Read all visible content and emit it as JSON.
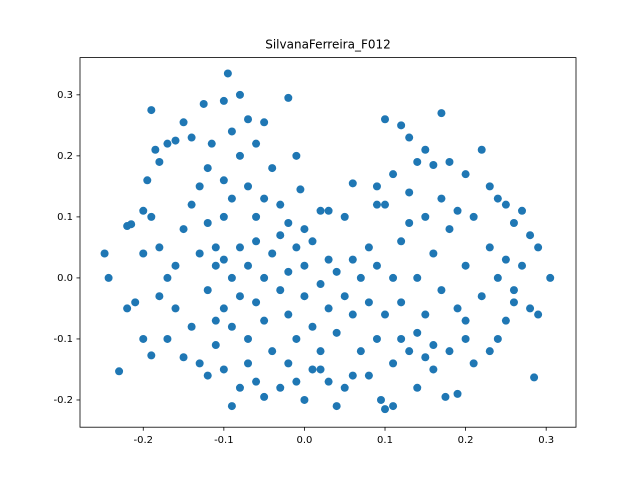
{
  "chart_data": {
    "type": "scatter",
    "title": "SilvanaFerreira_F012",
    "color": "#1f77b4",
    "xlim": [
      -0.2785,
      0.337
    ],
    "ylim": [
      -0.2446,
      0.361
    ],
    "xticks": [
      -0.2,
      -0.1,
      {
        "value": 0,
        "label": "0.0"
      },
      0.1,
      0.2,
      0.3
    ],
    "yticks": [
      -0.2,
      -0.1,
      {
        "value": 0,
        "label": "0.0"
      },
      0.1,
      0.2,
      0.3
    ],
    "x": [
      -0.248,
      -0.243,
      -0.23,
      -0.22,
      -0.215,
      -0.2,
      -0.195,
      -0.19,
      -0.185,
      -0.18,
      -0.17,
      -0.16,
      -0.15,
      -0.14,
      -0.125,
      -0.115,
      -0.1,
      -0.095,
      -0.09,
      -0.08,
      -0.07,
      -0.06,
      -0.05,
      -0.02,
      -0.01,
      -0.005,
      0.02,
      0.03,
      0.05,
      0.06,
      0.09,
      0.1,
      0.1,
      0.12,
      0.13,
      0.14,
      0.15,
      0.16,
      0.17,
      0.18,
      0.2,
      0.22,
      0.23,
      0.24,
      0.25,
      0.26,
      0.27,
      0.28,
      0.29,
      0.305,
      0.28,
      0.29,
      0.285,
      0.26,
      0.25,
      0.24,
      0.23,
      0.21,
      0.2,
      0.19,
      0.175,
      0.16,
      0.15,
      0.14,
      0.13,
      0.12,
      0.11,
      0.1,
      0.095,
      0.08,
      0.07,
      0.06,
      0.05,
      0.04,
      0.03,
      0.02,
      0.0,
      -0.01,
      -0.03,
      -0.05,
      -0.06,
      -0.08,
      -0.09,
      -0.1,
      -0.12,
      -0.13,
      -0.15,
      -0.17,
      -0.19,
      -0.2,
      -0.21,
      -0.22,
      -0.2,
      -0.18,
      -0.17,
      -0.16,
      -0.15,
      -0.14,
      -0.13,
      -0.12,
      -0.11,
      -0.1,
      -0.12,
      -0.11,
      -0.1,
      -0.1,
      -0.09,
      -0.09,
      -0.08,
      -0.08,
      -0.07,
      -0.07,
      -0.06,
      -0.06,
      -0.05,
      -0.05,
      -0.04,
      -0.04,
      -0.03,
      -0.03,
      -0.02,
      -0.02,
      -0.01,
      -0.01,
      0.0,
      0.0,
      0.01,
      0.01,
      0.02,
      0.02,
      0.03,
      0.03,
      0.04,
      0.04,
      0.05,
      0.06,
      0.06,
      0.07,
      0.08,
      0.08,
      0.09,
      0.1,
      0.11,
      0.12,
      0.12,
      0.13,
      0.14,
      0.15,
      0.15,
      0.16,
      0.17,
      0.18,
      0.19,
      0.2,
      0.21,
      0.22,
      0.23,
      0.24,
      0.25,
      0.26,
      0.27,
      -0.14,
      -0.13,
      -0.12,
      -0.11,
      -0.1,
      -0.09,
      -0.08,
      -0.07,
      -0.06,
      -0.05,
      -0.04,
      -0.03,
      -0.02,
      0.0,
      0.01,
      -0.02,
      -0.07,
      -0.11,
      -0.16,
      -0.18,
      -0.19,
      0.09,
      0.11,
      0.13,
      0.17,
      0.19,
      0.2,
      0.18,
      0.14,
      0.11,
      0.09,
      0.16
    ],
    "y": [
      0.04,
      0.0,
      -0.153,
      0.085,
      0.088,
      0.11,
      0.16,
      0.275,
      0.21,
      0.19,
      0.22,
      0.225,
      0.255,
      0.23,
      0.285,
      0.22,
      0.29,
      0.335,
      0.24,
      0.3,
      0.26,
      0.22,
      0.255,
      0.295,
      0.2,
      0.145,
      0.11,
      0.11,
      0.1,
      0.155,
      0.15,
      0.12,
      0.26,
      0.25,
      0.23,
      0.19,
      0.21,
      0.185,
      0.27,
      0.19,
      0.17,
      0.21,
      0.15,
      0.13,
      0.12,
      0.09,
      0.11,
      0.07,
      0.05,
      0.0,
      -0.05,
      -0.06,
      -0.163,
      -0.04,
      -0.07,
      -0.1,
      -0.12,
      -0.14,
      -0.1,
      -0.19,
      -0.195,
      -0.15,
      -0.13,
      -0.18,
      -0.12,
      -0.1,
      -0.21,
      -0.215,
      -0.2,
      -0.16,
      -0.12,
      -0.16,
      -0.18,
      -0.21,
      -0.17,
      -0.15,
      -0.2,
      -0.17,
      -0.18,
      -0.195,
      -0.17,
      -0.18,
      -0.21,
      -0.15,
      -0.16,
      -0.14,
      -0.13,
      -0.1,
      -0.127,
      -0.1,
      -0.04,
      -0.05,
      0.04,
      0.05,
      0.0,
      -0.05,
      0.08,
      0.12,
      0.15,
      0.18,
      0.05,
      0.1,
      -0.02,
      0.02,
      -0.05,
      0.03,
      0.0,
      -0.08,
      0.05,
      -0.03,
      0.02,
      -0.1,
      0.06,
      -0.04,
      0.0,
      -0.07,
      0.04,
      -0.12,
      -0.02,
      0.07,
      -0.06,
      0.01,
      -0.1,
      0.05,
      -0.03,
      0.02,
      -0.08,
      0.06,
      -0.01,
      -0.12,
      0.03,
      -0.05,
      -0.09,
      0.01,
      -0.03,
      -0.06,
      0.03,
      0.0,
      -0.04,
      0.05,
      0.02,
      -0.06,
      0.0,
      -0.04,
      0.06,
      0.09,
      0.0,
      -0.06,
      0.1,
      0.04,
      -0.02,
      0.08,
      -0.05,
      0.02,
      0.1,
      -0.03,
      0.05,
      0.0,
      0.03,
      -0.02,
      0.02,
      -0.08,
      0.04,
      0.09,
      -0.11,
      0.16,
      0.13,
      0.2,
      0.15,
      0.1,
      0.13,
      0.18,
      0.12,
      0.09,
      0.08,
      -0.15,
      -0.14,
      -0.14,
      -0.07,
      0.02,
      -0.03,
      0.1,
      0.12,
      0.17,
      0.14,
      0.13,
      0.11,
      -0.07,
      -0.12,
      -0.09,
      -0.14,
      -0.1,
      -0.11
    ]
  }
}
